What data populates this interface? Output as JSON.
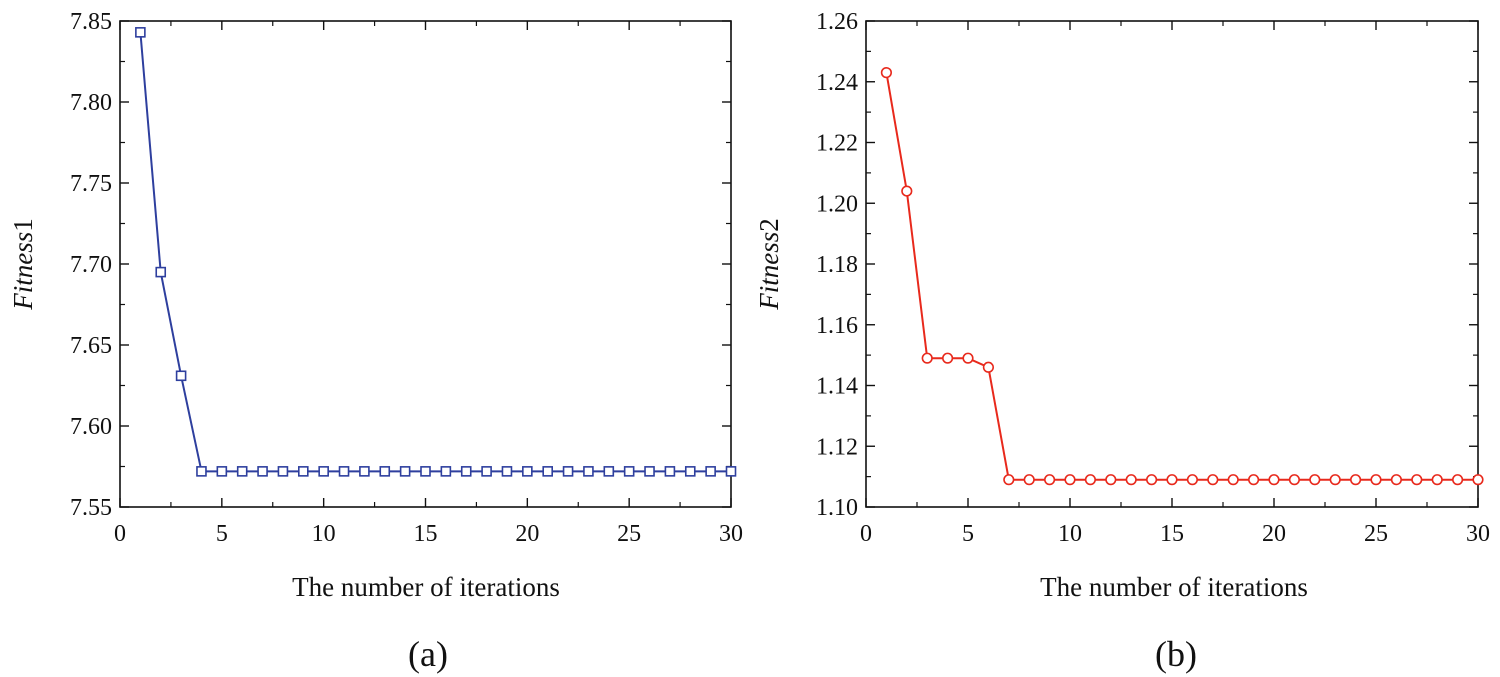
{
  "chart_data": [
    {
      "type": "line",
      "panel_label": "(a)",
      "title": "",
      "xlabel": "The number of iterations",
      "ylabel": "Fitness1",
      "ylabel_parts": [
        "Fitness",
        "1"
      ],
      "xlim": [
        0,
        30
      ],
      "ylim": [
        7.55,
        7.85
      ],
      "xticks": [
        0,
        5,
        10,
        15,
        20,
        25,
        30
      ],
      "xtick_labels": [
        "0",
        "5",
        "10",
        "15",
        "20",
        "25",
        "30"
      ],
      "yticks": [
        7.55,
        7.6,
        7.65,
        7.7,
        7.75,
        7.8,
        7.85
      ],
      "ytick_labels": [
        "7.55",
        "7.60",
        "7.65",
        "7.70",
        "7.75",
        "7.80",
        "7.85"
      ],
      "grid": false,
      "color": "#2e3f9e",
      "marker": "square",
      "series": [
        {
          "name": "Fitness1",
          "x": [
            1,
            2,
            3,
            4,
            5,
            6,
            7,
            8,
            9,
            10,
            11,
            12,
            13,
            14,
            15,
            16,
            17,
            18,
            19,
            20,
            21,
            22,
            23,
            24,
            25,
            26,
            27,
            28,
            29,
            30
          ],
          "values": [
            7.843,
            7.695,
            7.631,
            7.572,
            7.572,
            7.572,
            7.572,
            7.572,
            7.572,
            7.572,
            7.572,
            7.572,
            7.572,
            7.572,
            7.572,
            7.572,
            7.572,
            7.572,
            7.572,
            7.572,
            7.572,
            7.572,
            7.572,
            7.572,
            7.572,
            7.572,
            7.572,
            7.572,
            7.572,
            7.572
          ]
        }
      ]
    },
    {
      "type": "line",
      "panel_label": "(b)",
      "title": "",
      "xlabel": "The number of iterations",
      "ylabel": "Fitness2",
      "ylabel_parts": [
        "Fitness",
        "2"
      ],
      "xlim": [
        0,
        30
      ],
      "ylim": [
        1.1,
        1.26
      ],
      "xticks": [
        0,
        5,
        10,
        15,
        20,
        25,
        30
      ],
      "xtick_labels": [
        "0",
        "5",
        "10",
        "15",
        "20",
        "25",
        "30"
      ],
      "yticks": [
        1.1,
        1.12,
        1.14,
        1.16,
        1.18,
        1.2,
        1.22,
        1.24,
        1.26
      ],
      "ytick_labels": [
        "1.10",
        "1.12",
        "1.14",
        "1.16",
        "1.18",
        "1.20",
        "1.22",
        "1.24",
        "1.26"
      ],
      "grid": false,
      "color": "#e8291c",
      "marker": "circle",
      "series": [
        {
          "name": "Fitness2",
          "x": [
            1,
            2,
            3,
            4,
            5,
            6,
            7,
            8,
            9,
            10,
            11,
            12,
            13,
            14,
            15,
            16,
            17,
            18,
            19,
            20,
            21,
            22,
            23,
            24,
            25,
            26,
            27,
            28,
            29,
            30
          ],
          "values": [
            1.243,
            1.204,
            1.149,
            1.149,
            1.149,
            1.146,
            1.109,
            1.109,
            1.109,
            1.109,
            1.109,
            1.109,
            1.109,
            1.109,
            1.109,
            1.109,
            1.109,
            1.109,
            1.109,
            1.109,
            1.109,
            1.109,
            1.109,
            1.109,
            1.109,
            1.109,
            1.109,
            1.109,
            1.109,
            1.109
          ]
        }
      ]
    }
  ]
}
